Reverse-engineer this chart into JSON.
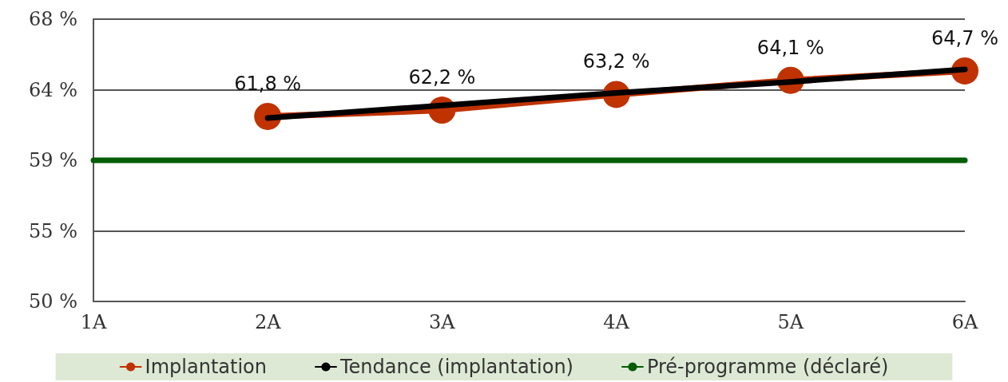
{
  "chart_data": {
    "type": "line",
    "categories": [
      "1A",
      "2A",
      "3A",
      "4A",
      "5A",
      "6A"
    ],
    "series": [
      {
        "name": "Implantation",
        "color": "#c03200",
        "values": [
          null,
          61.8,
          62.2,
          63.2,
          64.1,
          64.7
        ],
        "marker": "circle",
        "value_labels": [
          null,
          "61,8 %",
          "62,2 %",
          "63,2 %",
          "64,1 %",
          "64,7 %"
        ]
      },
      {
        "name": "Tendance (implantation)",
        "color": "#000000",
        "values": [
          null,
          61.7,
          62.5,
          63.3,
          64.0,
          64.8
        ],
        "marker": "none"
      },
      {
        "name": "Pré-programme (déclaré)",
        "color": "#045c04",
        "values": [
          59,
          59,
          59,
          59,
          59,
          59
        ],
        "marker": "none"
      }
    ],
    "ylim": [
      50,
      68
    ],
    "yticks": [
      {
        "value": 50,
        "label": "50 %"
      },
      {
        "value": 54.5,
        "label": "55 %"
      },
      {
        "value": 59,
        "label": "59 %"
      },
      {
        "value": 63.5,
        "label": "64 %"
      },
      {
        "value": 68,
        "label": "68 %"
      }
    ],
    "grid": "y",
    "legend": "bottom",
    "line_style": "solid"
  }
}
